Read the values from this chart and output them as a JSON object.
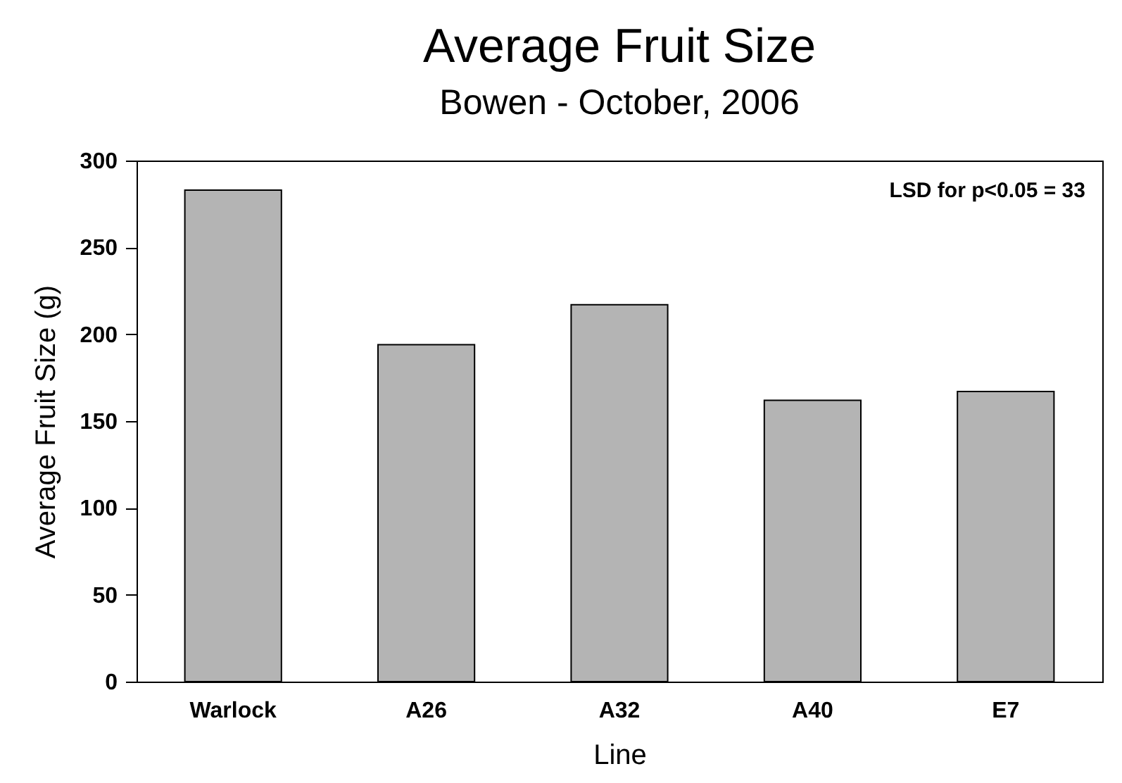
{
  "chart_data": {
    "type": "bar",
    "title": "Average Fruit Size",
    "subtitle": "Bowen - October, 2006",
    "xlabel": "Line",
    "ylabel": "Average Fruit Size (g)",
    "categories": [
      "Warlock",
      "A26",
      "A32",
      "A40",
      "E7"
    ],
    "values": [
      283,
      194,
      217,
      162,
      167
    ],
    "color": "#b4b4b4",
    "ylim": [
      0,
      300
    ],
    "yticks": [
      0,
      50,
      100,
      150,
      200,
      250,
      300
    ],
    "grid": false,
    "annotations": [
      "LSD for p<0.05 = 33"
    ]
  }
}
